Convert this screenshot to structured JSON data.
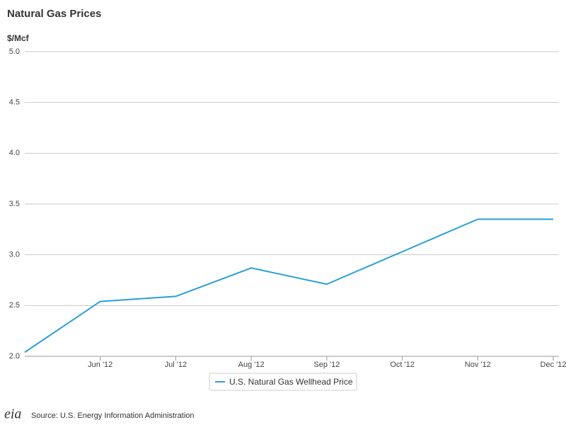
{
  "chart_data": {
    "type": "line",
    "title": "Natural Gas Prices",
    "y_label": "$/Mcf",
    "categories": [
      null,
      "Jun '12",
      "Jul '12",
      "Aug '12",
      "Sep '12",
      "Oct '12",
      "Nov '12",
      "Dec '12"
    ],
    "series": [
      {
        "name": "U.S. Natural Gas Wellhead Price",
        "color": "#2a9fd8",
        "values": [
          2.04,
          2.54,
          2.59,
          2.87,
          2.71,
          3.03,
          3.35,
          3.35
        ]
      }
    ],
    "ylim": [
      2,
      5
    ],
    "yticks": [
      {
        "value": 2,
        "label": "2.0"
      },
      {
        "value": 2.5,
        "label": "2.5"
      },
      {
        "value": 3,
        "label": "3.0"
      },
      {
        "value": 3.5,
        "label": "3.5"
      },
      {
        "value": 4,
        "label": "4.0"
      },
      {
        "value": 4.5,
        "label": "4.5"
      },
      {
        "value": 5,
        "label": "5.0"
      }
    ],
    "grid": true,
    "source": "Source: U.S. Energy Information Administration",
    "logo": "eia"
  }
}
